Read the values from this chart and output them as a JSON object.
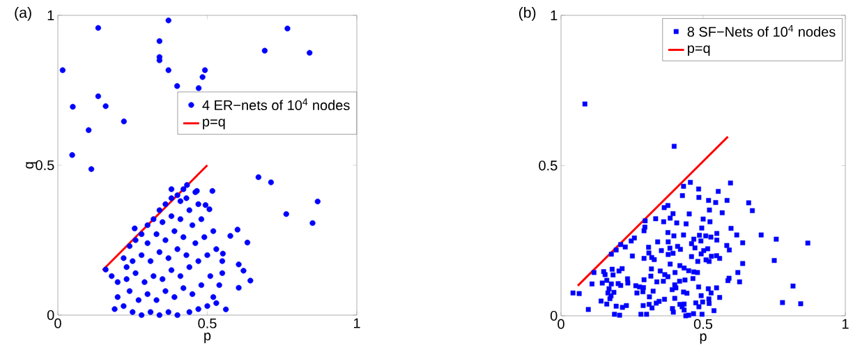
{
  "chart_data": [
    {
      "type": "scatter",
      "xlabel": "p",
      "ylabel": "q",
      "xlim": [
        0,
        1
      ],
      "ylim": [
        0,
        1
      ],
      "xticks": [
        0,
        0.5,
        1
      ],
      "yticks": [
        0,
        0.5,
        1
      ],
      "legend": "right",
      "annotations": [
        "(a)"
      ],
      "series": [
        {
          "name": "4 ER−nets of 10$^{4}$ nodes",
          "color": "#0000ff",
          "marker": "circle",
          "x": [
            0.016,
            0.135,
            0.37,
            0.34,
            0.34,
            0.34,
            0.37,
            0.492,
            0.484,
            0.399,
            0.471,
            0.692,
            0.768,
            0.842,
            0.135,
            0.05,
            0.16,
            0.221,
            0.103,
            0.048,
            0.112,
            0.671,
            0.713,
            0.869,
            0.764,
            0.852,
            0.601,
            0.577,
            0.634,
            0.605,
            0.621,
            0.644,
            0.605,
            0.562,
            0.552,
            0.517,
            0.465,
            0.432,
            0.257,
            0.16,
            0.494,
            0.507,
            0.19,
            0.2,
            0.2,
            0.18,
            0.22,
            0.23,
            0.24,
            0.26,
            0.28,
            0.3,
            0.32,
            0.34,
            0.36,
            0.38,
            0.4,
            0.42,
            0.38,
            0.41,
            0.22,
            0.25,
            0.28,
            0.31,
            0.34,
            0.37,
            0.4,
            0.44,
            0.47,
            0.5,
            0.52,
            0.24,
            0.27,
            0.3,
            0.33,
            0.36,
            0.39,
            0.42,
            0.45,
            0.48,
            0.51,
            0.23,
            0.26,
            0.29,
            0.32,
            0.35,
            0.38,
            0.41,
            0.44,
            0.47,
            0.5,
            0.53,
            0.55,
            0.25,
            0.28,
            0.31,
            0.34,
            0.37,
            0.4,
            0.43,
            0.46,
            0.49,
            0.52,
            0.3,
            0.33,
            0.36,
            0.39,
            0.42,
            0.45,
            0.48,
            0.35,
            0.38,
            0.41,
            0.44,
            0.47,
            0.43,
            0.46,
            0.54,
            0.55,
            0.53
          ],
          "values": [
            0.817,
            0.958,
            0.983,
            0.914,
            0.861,
            0.85,
            0.817,
            0.817,
            0.794,
            0.764,
            0.757,
            0.882,
            0.956,
            0.875,
            0.73,
            0.695,
            0.697,
            0.646,
            0.617,
            0.534,
            0.487,
            0.46,
            0.443,
            0.379,
            0.337,
            0.307,
            0.285,
            0.264,
            0.242,
            0.169,
            0.148,
            0.115,
            0.091,
            0.019,
            0.205,
            0.414,
            0.414,
            0.434,
            0.289,
            0.152,
            0.367,
            0.353,
            0.02,
            0.06,
            0.11,
            0.13,
            0.19,
            0.16,
            0.23,
            0.25,
            0.27,
            0.3,
            0.32,
            0.35,
            0.37,
            0.39,
            0.4,
            0.42,
            0.42,
            0.38,
            0.03,
            0.01,
            0.0,
            0.01,
            0.0,
            0.01,
            0.0,
            0.01,
            0.02,
            0.03,
            0.06,
            0.08,
            0.05,
            0.07,
            0.05,
            0.08,
            0.06,
            0.09,
            0.07,
            0.1,
            0.13,
            0.12,
            0.14,
            0.11,
            0.13,
            0.12,
            0.15,
            0.13,
            0.16,
            0.18,
            0.2,
            0.22,
            0.18,
            0.18,
            0.2,
            0.18,
            0.21,
            0.19,
            0.22,
            0.2,
            0.24,
            0.26,
            0.28,
            0.24,
            0.27,
            0.25,
            0.28,
            0.26,
            0.3,
            0.32,
            0.31,
            0.33,
            0.32,
            0.35,
            0.37,
            0.39,
            0.41,
            0.1,
            0.14,
            0.04
          ]
        },
        {
          "name": "p=q",
          "type": "line",
          "color": "#ff0000",
          "marker": "none",
          "x": [
            0.15,
            0.5
          ],
          "values": [
            0.15,
            0.5
          ]
        }
      ]
    },
    {
      "type": "scatter",
      "xlabel": "p",
      "xlim": [
        0,
        1
      ],
      "ylim": [
        0,
        1
      ],
      "xticks": [
        0,
        0.5,
        1
      ],
      "yticks": [
        0,
        0.5,
        1
      ],
      "legend": "top right",
      "annotations": [
        "(b)"
      ],
      "series": [
        {
          "name": "8 SF−Nets of 10$^{4}$ nodes",
          "color": "#0000ff",
          "marker": "square",
          "x": [
            0.084,
            0.398,
            0.455,
            0.431,
            0.596,
            0.484,
            0.553,
            0.427,
            0.485,
            0.519,
            0.544,
            0.584,
            0.66,
            0.673,
            0.376,
            0.363,
            0.522,
            0.567,
            0.394,
            0.451,
            0.384,
            0.333,
            0.5,
            0.361,
            0.407,
            0.44,
            0.524,
            0.296,
            0.295,
            0.292,
            0.495,
            0.598,
            0.376,
            0.397,
            0.431,
            0.487,
            0.509,
            0.527,
            0.548,
            0.618,
            0.704,
            0.757,
            0.868,
            0.258,
            0.247,
            0.34,
            0.377,
            0.467,
            0.492,
            0.548,
            0.639,
            0.459,
            0.21,
            0.226,
            0.308,
            0.383,
            0.41,
            0.42,
            0.471,
            0.516,
            0.502,
            0.583,
            0.592,
            0.194,
            0.177,
            0.309,
            0.353,
            0.377,
            0.394,
            0.493,
            0.529,
            0.547,
            0.251,
            0.292,
            0.319,
            0.328,
            0.459,
            0.481,
            0.51,
            0.521,
            0.558,
            0.639,
            0.75,
            0.384,
            0.418,
            0.433,
            0.318,
            0.349,
            0.401,
            0.449,
            0.467,
            0.48,
            0.622,
            0.116,
            0.15,
            0.155,
            0.18,
            0.204,
            0.215,
            0.183,
            0.365,
            0.376,
            0.316,
            0.292,
            0.234,
            0.235,
            0.337,
            0.36,
            0.417,
            0.436,
            0.464,
            0.591,
            0.587,
            0.628,
            0.109,
            0.145,
            0.161,
            0.177,
            0.201,
            0.21,
            0.263,
            0.276,
            0.29,
            0.4,
            0.404,
            0.391,
            0.484,
            0.518,
            0.547,
            0.816,
            0.042,
            0.064,
            0.169,
            0.165,
            0.186,
            0.267,
            0.288,
            0.324,
            0.431,
            0.443,
            0.528,
            0.176,
            0.172,
            0.311,
            0.4,
            0.493,
            0.52,
            0.558,
            0.364,
            0.141,
            0.161,
            0.194,
            0.216,
            0.23,
            0.289,
            0.31,
            0.32,
            0.335,
            0.345,
            0.418,
            0.433,
            0.426,
            0.474,
            0.485,
            0.498,
            0.521,
            0.779,
            0.843,
            0.096,
            0.392,
            0.395,
            0.433,
            0.538,
            0.188,
            0.206,
            0.281,
            0.301,
            0.439,
            0.449,
            0.466,
            0.496
          ],
          "values": [
            0.705,
            0.564,
            0.444,
            0.431,
            0.442,
            0.422,
            0.414,
            0.4,
            0.394,
            0.384,
            0.377,
            0.384,
            0.376,
            0.35,
            0.367,
            0.36,
            0.352,
            0.343,
            0.34,
            0.339,
            0.325,
            0.323,
            0.322,
            0.313,
            0.309,
            0.306,
            0.313,
            0.316,
            0.295,
            0.283,
            0.292,
            0.291,
            0.277,
            0.266,
            0.269,
            0.268,
            0.266,
            0.262,
            0.274,
            0.269,
            0.269,
            0.255,
            0.242,
            0.259,
            0.249,
            0.246,
            0.246,
            0.255,
            0.249,
            0.252,
            0.243,
            0.24,
            0.237,
            0.229,
            0.228,
            0.225,
            0.231,
            0.221,
            0.226,
            0.223,
            0.217,
            0.234,
            0.219,
            0.219,
            0.205,
            0.209,
            0.217,
            0.204,
            0.208,
            0.206,
            0.198,
            0.2,
            0.199,
            0.191,
            0.194,
            0.187,
            0.197,
            0.181,
            0.186,
            0.181,
            0.191,
            0.174,
            0.184,
            0.172,
            0.167,
            0.159,
            0.156,
            0.149,
            0.144,
            0.15,
            0.146,
            0.144,
            0.144,
            0.144,
            0.147,
            0.137,
            0.155,
            0.149,
            0.157,
            0.136,
            0.137,
            0.13,
            0.132,
            0.12,
            0.123,
            0.109,
            0.113,
            0.115,
            0.115,
            0.119,
            0.124,
            0.125,
            0.117,
            0.113,
            0.106,
            0.109,
            0.118,
            0.106,
            0.107,
            0.101,
            0.1,
            0.096,
            0.094,
            0.103,
            0.093,
            0.087,
            0.096,
            0.09,
            0.093,
            0.099,
            0.076,
            0.074,
            0.09,
            0.076,
            0.078,
            0.076,
            0.08,
            0.082,
            0.079,
            0.075,
            0.076,
            0.066,
            0.057,
            0.063,
            0.058,
            0.067,
            0.056,
            0.061,
            0.055,
            0.049,
            0.039,
            0.032,
            0.028,
            0.034,
            0.034,
            0.038,
            0.026,
            0.042,
            0.048,
            0.038,
            0.039,
            0.03,
            0.043,
            0.03,
            0.046,
            0.041,
            0.044,
            0.04,
            0.021,
            0.024,
            0.012,
            0.019,
            0.017,
            0.005,
            0.002,
            0.005,
            0.005,
            0.0,
            0.002,
            0.007,
            0.005
          ]
        },
        {
          "name": "p=q",
          "type": "line",
          "color": "#ff0000",
          "marker": "none",
          "x": [
            0.059,
            0.587
          ],
          "values": [
            0.1,
            0.596
          ]
        }
      ]
    }
  ]
}
